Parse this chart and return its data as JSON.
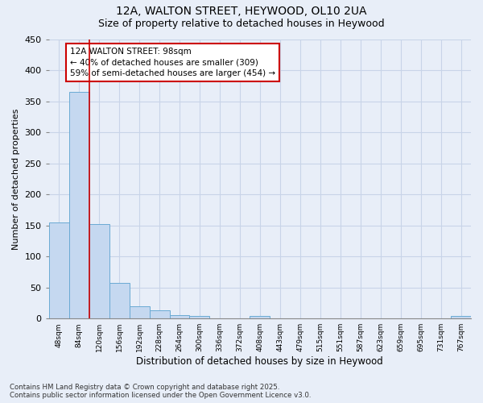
{
  "title1": "12A, WALTON STREET, HEYWOOD, OL10 2UA",
  "title2": "Size of property relative to detached houses in Heywood",
  "xlabel": "Distribution of detached houses by size in Heywood",
  "ylabel": "Number of detached properties",
  "bar_values": [
    155,
    365,
    152,
    57,
    20,
    13,
    5,
    4,
    0,
    0,
    4,
    0,
    0,
    0,
    0,
    0,
    0,
    0,
    0,
    0,
    4
  ],
  "categories": [
    "48sqm",
    "84sqm",
    "120sqm",
    "156sqm",
    "192sqm",
    "228sqm",
    "264sqm",
    "300sqm",
    "336sqm",
    "372sqm",
    "408sqm",
    "443sqm",
    "479sqm",
    "515sqm",
    "551sqm",
    "587sqm",
    "623sqm",
    "659sqm",
    "695sqm",
    "731sqm",
    "767sqm"
  ],
  "bar_color": "#c5d8f0",
  "bar_edge_color": "#6aaad4",
  "red_line_x": 1.5,
  "ylim": [
    0,
    450
  ],
  "yticks": [
    0,
    50,
    100,
    150,
    200,
    250,
    300,
    350,
    400,
    450
  ],
  "annotation_text": "12A WALTON STREET: 98sqm\n← 40% of detached houses are smaller (309)\n59% of semi-detached houses are larger (454) →",
  "annotation_box_color": "white",
  "annotation_box_edge_color": "#cc0000",
  "footer1": "Contains HM Land Registry data © Crown copyright and database right 2025.",
  "footer2": "Contains public sector information licensed under the Open Government Licence v3.0.",
  "background_color": "#e8eef8",
  "grid_color": "#c8d4e8"
}
